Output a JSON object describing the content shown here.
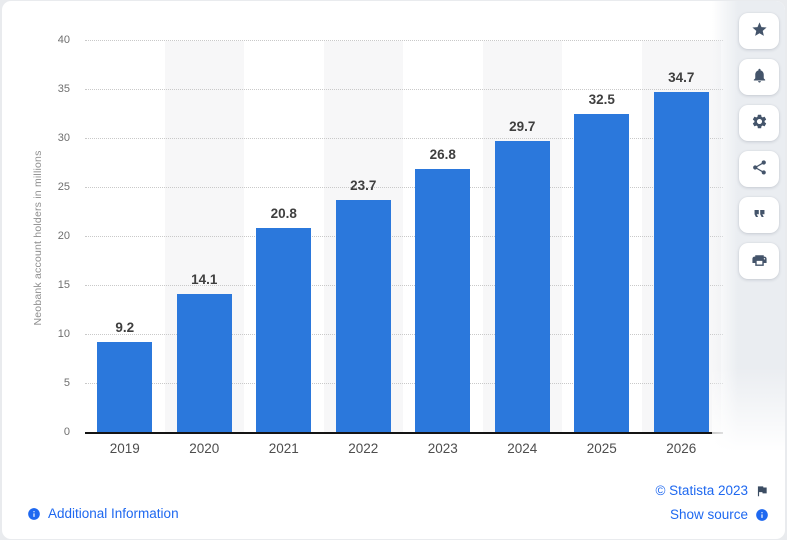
{
  "chart_data": {
    "type": "bar",
    "title": "",
    "categories": [
      "2019",
      "2020",
      "2021",
      "2022",
      "2023",
      "2024",
      "2025",
      "2026"
    ],
    "values": [
      9.2,
      14.1,
      20.8,
      23.7,
      26.8,
      29.7,
      32.5,
      34.7
    ],
    "data_labels": [
      "9.2",
      "14.1",
      "20.8",
      "23.7",
      "26.8",
      "29.7",
      "32.5",
      "34.7"
    ],
    "xlabel": "",
    "ylabel": "Neobank account holders in millions",
    "ylim": [
      0,
      40
    ],
    "yticks": [
      0,
      5,
      10,
      15,
      20,
      25,
      30,
      35,
      40
    ],
    "grid": "horizontal-dotted",
    "legend": "none",
    "bar_color": "#2b78dc",
    "band_color": "#f7f7f8",
    "banded_category_indexes": [
      1,
      3,
      5,
      7
    ]
  },
  "sidebar": {
    "buttons": [
      {
        "icon": "star-icon"
      },
      {
        "icon": "bell-icon"
      },
      {
        "icon": "settings-gear-icon"
      },
      {
        "icon": "share-icon"
      },
      {
        "icon": "quote-icon"
      },
      {
        "icon": "print-icon"
      }
    ]
  },
  "footer": {
    "additional_info_label": "Additional Information",
    "copyright": "© Statista 2023",
    "show_source_label": "Show source"
  },
  "colors": {
    "link_blue": "#1e68f0",
    "toolbar_icon": "#44546a",
    "flag_icon": "#3c4d63",
    "axis_line": "#141414",
    "gridline": "#c9c9c9",
    "tick_text": "#6f6f6f",
    "bar_label_text": "#3f3f3f",
    "page_background": "#e9ebee",
    "card_background": "#ffffff",
    "sidebar_background": "#eaedf1"
  }
}
